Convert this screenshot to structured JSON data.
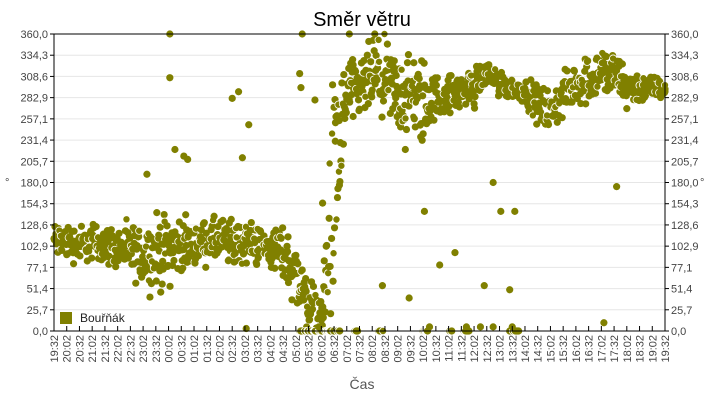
{
  "chart_data": {
    "type": "scatter",
    "title": "Směr větru",
    "xlabel": "Čas",
    "ylabel": "°",
    "ylabel_right": "°",
    "ylim": [
      0,
      360
    ],
    "yticks": [
      "0,0",
      "25,7",
      "51,4",
      "77,1",
      "102,9",
      "128,6",
      "154,3",
      "180,0",
      "205,7",
      "231,4",
      "257,1",
      "282,9",
      "308,6",
      "334,3",
      "360,0"
    ],
    "xticks": [
      "19:32",
      "20:02",
      "20:32",
      "21:02",
      "21:32",
      "22:02",
      "22:32",
      "23:02",
      "23:32",
      "00:02",
      "00:32",
      "01:02",
      "01:32",
      "02:02",
      "02:32",
      "03:02",
      "03:32",
      "04:02",
      "04:32",
      "05:02",
      "05:32",
      "06:02",
      "06:32",
      "07:02",
      "07:32",
      "08:02",
      "08:32",
      "09:02",
      "09:32",
      "10:02",
      "10:32",
      "11:02",
      "11:32",
      "12:02",
      "12:32",
      "13:02",
      "13:32",
      "14:02",
      "14:32",
      "15:02",
      "15:32",
      "16:02",
      "16:32",
      "17:02",
      "17:32",
      "18:02",
      "18:32",
      "19:02",
      "19:32"
    ],
    "grid": true,
    "legend": {
      "position": "lower-left",
      "entries": [
        "Bouřňák"
      ]
    },
    "series": [
      {
        "name": "Bouřňák",
        "color": "#808000",
        "trend": [
          {
            "t": 0,
            "center": 110,
            "spread": 18
          },
          {
            "t": 1,
            "center": 108,
            "spread": 18
          },
          {
            "t": 2,
            "center": 105,
            "spread": 18
          },
          {
            "t": 3,
            "center": 108,
            "spread": 18
          },
          {
            "t": 4,
            "center": 105,
            "spread": 18
          },
          {
            "t": 5,
            "center": 100,
            "spread": 20
          },
          {
            "t": 6,
            "center": 95,
            "spread": 25
          },
          {
            "t": 7,
            "center": 92,
            "spread": 30
          },
          {
            "t": 8,
            "center": 95,
            "spread": 35
          },
          {
            "t": 9,
            "center": 100,
            "spread": 35
          },
          {
            "t": 10,
            "center": 105,
            "spread": 25
          },
          {
            "t": 11,
            "center": 103,
            "spread": 20
          },
          {
            "t": 12,
            "center": 108,
            "spread": 20
          },
          {
            "t": 13,
            "center": 110,
            "spread": 22
          },
          {
            "t": 14,
            "center": 105,
            "spread": 25
          },
          {
            "t": 15,
            "center": 108,
            "spread": 20
          },
          {
            "t": 16,
            "center": 105,
            "spread": 20
          },
          {
            "t": 17,
            "center": 100,
            "spread": 20
          },
          {
            "t": 18,
            "center": 95,
            "spread": 25
          },
          {
            "t": 19,
            "center": 70,
            "spread": 35
          },
          {
            "t": 20,
            "center": 30,
            "spread": 30
          },
          {
            "t": 21,
            "center": 15,
            "spread": 20
          },
          {
            "t": 22,
            "center": 150,
            "spread": 140
          },
          {
            "t": 23,
            "center": 290,
            "spread": 30
          },
          {
            "t": 24,
            "center": 290,
            "spread": 30
          },
          {
            "t": 25,
            "center": 310,
            "spread": 35
          },
          {
            "t": 26,
            "center": 300,
            "spread": 40
          },
          {
            "t": 27,
            "center": 285,
            "spread": 40
          },
          {
            "t": 28,
            "center": 285,
            "spread": 40
          },
          {
            "t": 29,
            "center": 275,
            "spread": 45
          },
          {
            "t": 30,
            "center": 285,
            "spread": 20
          },
          {
            "t": 31,
            "center": 285,
            "spread": 20
          },
          {
            "t": 32,
            "center": 290,
            "spread": 15
          },
          {
            "t": 33,
            "center": 295,
            "spread": 20
          },
          {
            "t": 34,
            "center": 315,
            "spread": 10
          },
          {
            "t": 35,
            "center": 300,
            "spread": 15
          },
          {
            "t": 36,
            "center": 295,
            "spread": 10
          },
          {
            "t": 37,
            "center": 290,
            "spread": 10
          },
          {
            "t": 38,
            "center": 275,
            "spread": 20
          },
          {
            "t": 39,
            "center": 265,
            "spread": 20
          },
          {
            "t": 40,
            "center": 285,
            "spread": 20
          },
          {
            "t": 41,
            "center": 300,
            "spread": 20
          },
          {
            "t": 42,
            "center": 305,
            "spread": 25
          },
          {
            "t": 43,
            "center": 315,
            "spread": 25
          },
          {
            "t": 44,
            "center": 310,
            "spread": 25
          },
          {
            "t": 45,
            "center": 295,
            "spread": 20
          },
          {
            "t": 46,
            "center": 295,
            "spread": 15
          },
          {
            "t": 47,
            "center": 295,
            "spread": 12
          },
          {
            "t": 48,
            "center": 292,
            "spread": 8
          }
        ],
        "outliers": [
          [
            9.1,
            360
          ],
          [
            9.1,
            307
          ],
          [
            19.5,
            360
          ],
          [
            19.3,
            312
          ],
          [
            19.4,
            295
          ],
          [
            23.2,
            360
          ],
          [
            25.2,
            360
          ],
          [
            7.3,
            190
          ],
          [
            9.5,
            220
          ],
          [
            10.2,
            212
          ],
          [
            10.5,
            208
          ],
          [
            14.5,
            290
          ],
          [
            14,
            282
          ],
          [
            15.3,
            250
          ],
          [
            14.8,
            210
          ],
          [
            15.1,
            3
          ],
          [
            20.5,
            280
          ],
          [
            21.1,
            155
          ],
          [
            22.1,
            230
          ],
          [
            22.4,
            255
          ],
          [
            23.5,
            260
          ],
          [
            27.6,
            220
          ],
          [
            29.1,
            145
          ],
          [
            31.5,
            95
          ],
          [
            30.3,
            80
          ],
          [
            34.5,
            180
          ],
          [
            35.1,
            145
          ],
          [
            36.2,
            145
          ],
          [
            44.2,
            175
          ],
          [
            43.2,
            10
          ],
          [
            25.8,
            55
          ],
          [
            27.9,
            40
          ],
          [
            33.8,
            55
          ],
          [
            35.8,
            50
          ],
          [
            20.8,
            5
          ],
          [
            29.5,
            5
          ],
          [
            32.4,
            5
          ],
          [
            33.5,
            5
          ],
          [
            34.5,
            5
          ],
          [
            36.0,
            5
          ]
        ],
        "zero_clusters": [
          [
            19.3,
            22.5
          ],
          [
            23.6,
            23.9
          ],
          [
            25.5,
            25.9
          ],
          [
            29.0,
            29.4
          ],
          [
            31.1,
            31.3
          ],
          [
            32.2,
            32.6
          ],
          [
            35.8,
            36.5
          ]
        ]
      }
    ]
  }
}
